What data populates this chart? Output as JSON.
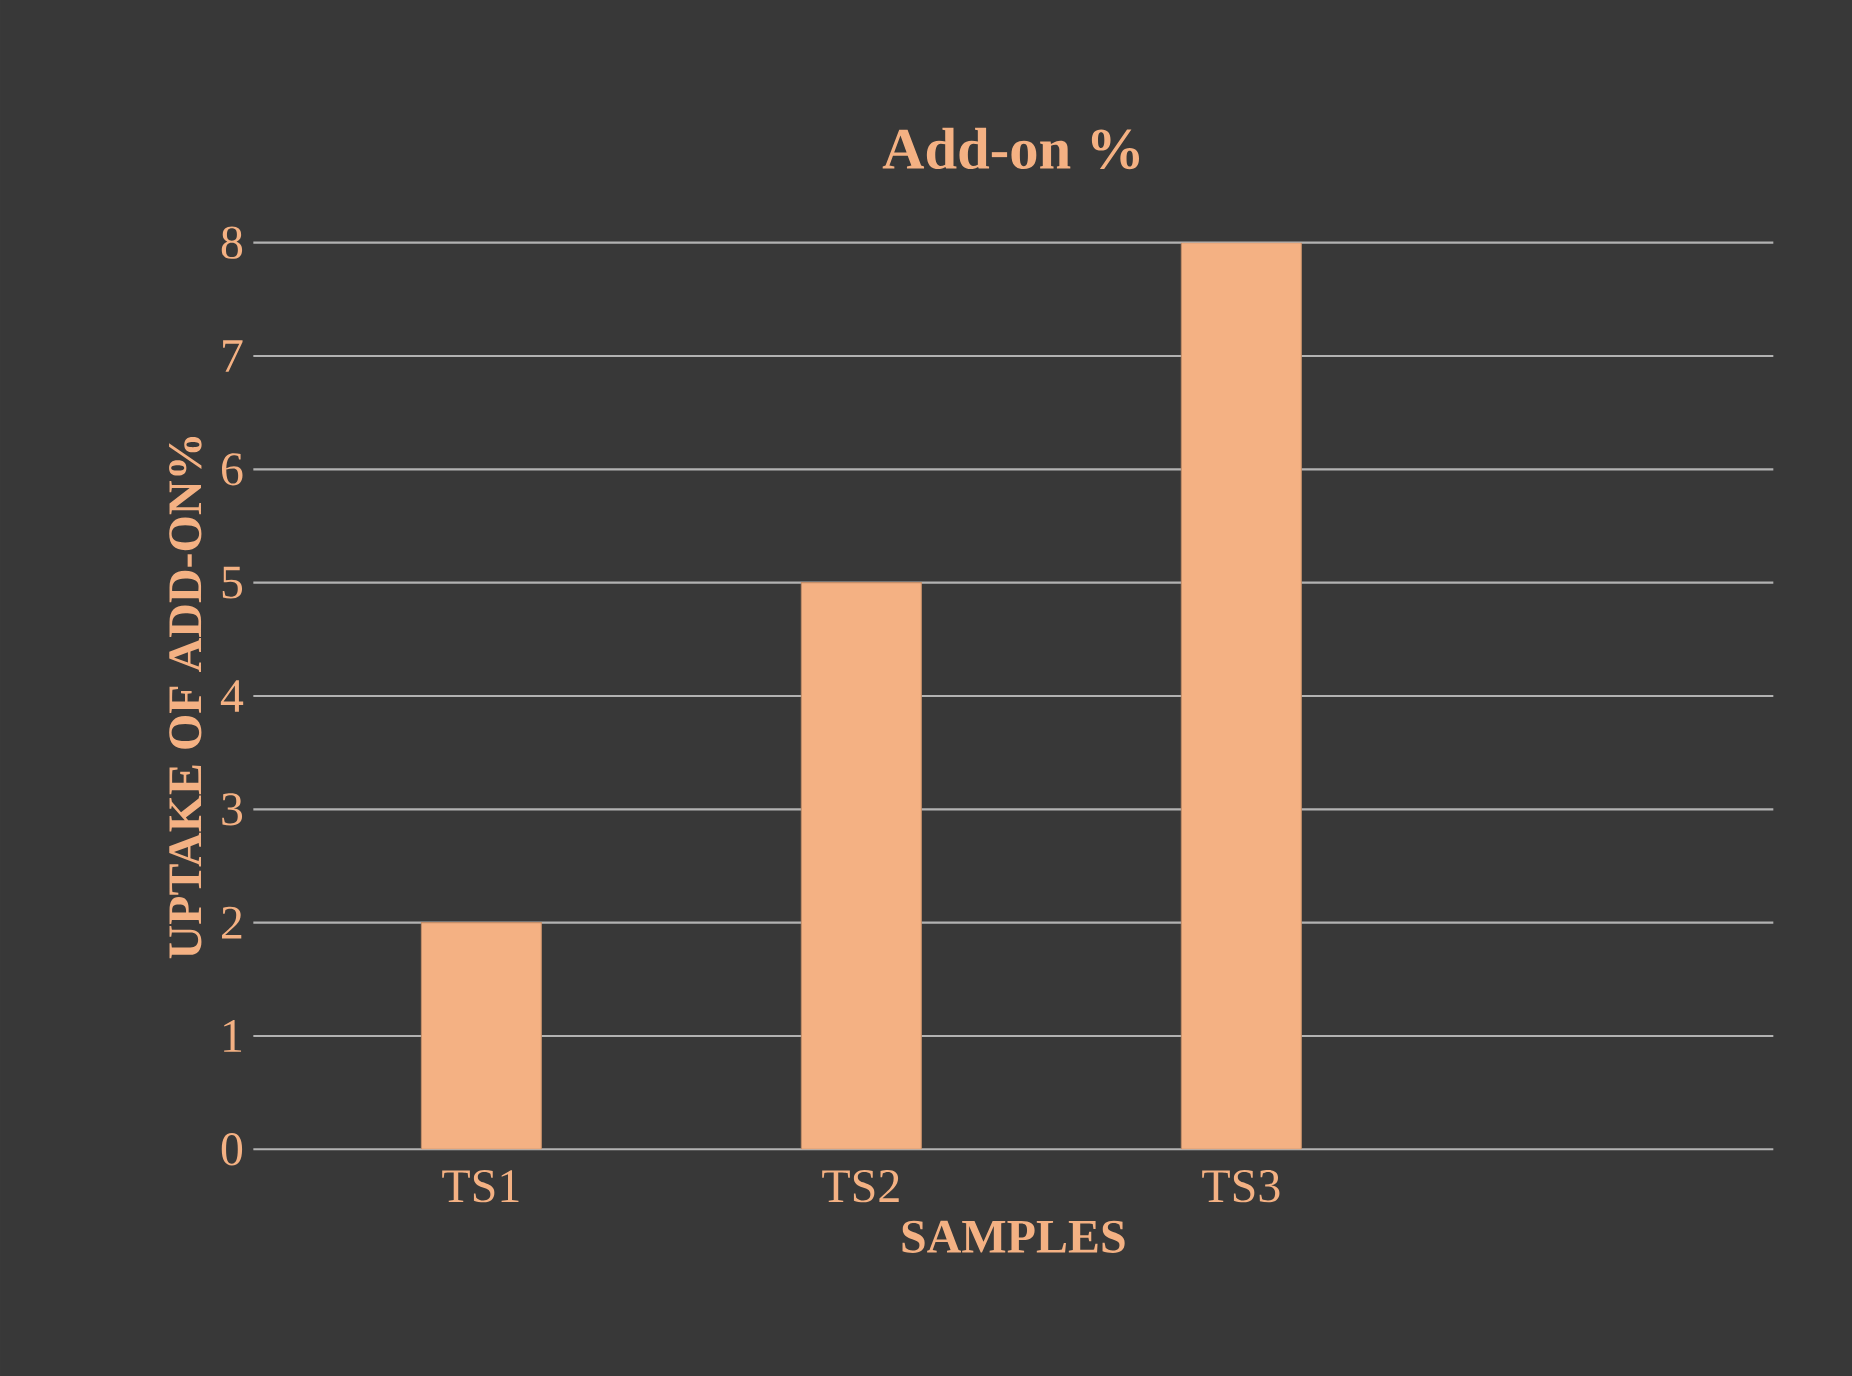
{
  "chart_data": {
    "type": "bar",
    "title": "Add-on %",
    "xlabel": "SAMPLES",
    "ylabel": "UPTAKE OF ADD-ON%",
    "categories": [
      "TS1",
      "TS2",
      "TS3"
    ],
    "values": [
      2,
      5,
      8
    ],
    "color": "#f4b183",
    "ylim": [
      0,
      8
    ],
    "yticks": [
      0,
      1,
      2,
      3,
      4,
      5,
      6,
      7,
      8
    ],
    "grid": "y"
  }
}
